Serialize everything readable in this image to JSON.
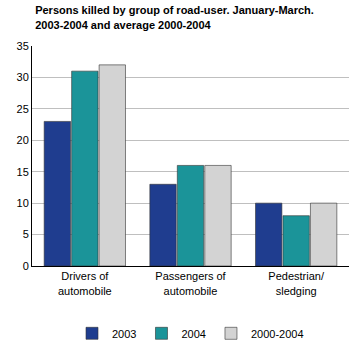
{
  "chart_data": {
    "type": "bar",
    "title": "Persons killed by group of road-user. January-March.\n2003-2004 and average 2000-2004",
    "categories": [
      "Drivers of\nautomobile",
      "Passengers of\nautomobile",
      "Pedestrian/\nsledging"
    ],
    "series": [
      {
        "name": "2003",
        "color": "#1f3d8f",
        "values": [
          23,
          13,
          10
        ]
      },
      {
        "name": "2004",
        "color": "#1b9499",
        "values": [
          31,
          16,
          8
        ]
      },
      {
        "name": "2000-2004",
        "color": "#d3d3d3",
        "values": [
          32,
          16,
          10
        ]
      }
    ],
    "ylim": [
      0,
      35
    ],
    "yticks": [
      0,
      5,
      10,
      15,
      20,
      25,
      30,
      35
    ],
    "grid": true,
    "legend": "bottom"
  }
}
